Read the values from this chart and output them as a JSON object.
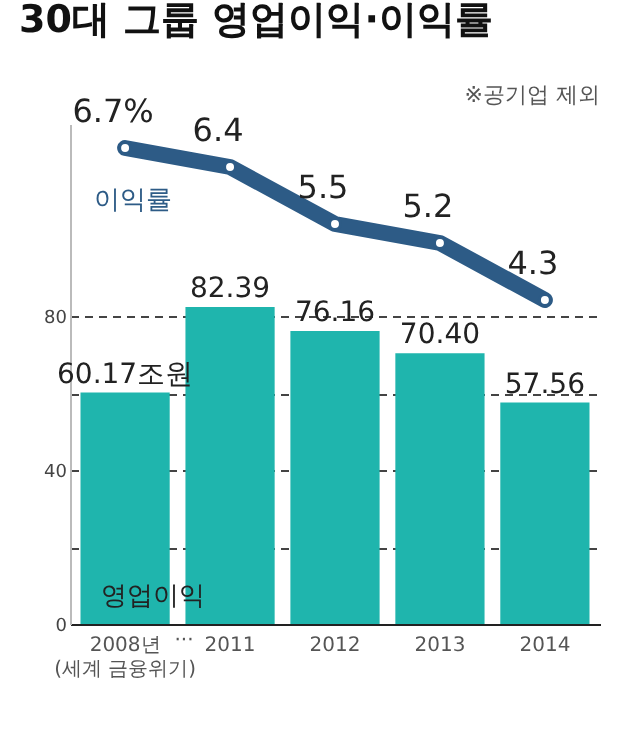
{
  "chart_data": {
    "type": "bar",
    "title": "30대 그룹 영업이익·이익률",
    "annotations": [
      "※공기업 제외",
      "···"
    ],
    "categories": [
      "2008년\n(세계 금융위기)",
      "2011",
      "2012",
      "2013",
      "2014"
    ],
    "series": [
      {
        "name": "영업이익",
        "color": "#1fb5ad",
        "values": [
          60.17,
          82.39,
          76.16,
          70.4,
          57.56
        ],
        "value_labels": [
          "60.17조원",
          "82.39",
          "76.16",
          "70.40",
          "57.56"
        ]
      },
      {
        "name": "이익률",
        "type": "line",
        "axis": "y2",
        "color": "#2d5b86",
        "values": [
          6.7,
          6.4,
          5.5,
          5.2,
          4.3
        ],
        "value_labels": [
          "6.7%",
          "6.4",
          "5.5",
          "5.2",
          "4.3"
        ]
      }
    ],
    "ylim": [
      0,
      130
    ],
    "yticks": [
      0,
      {
        "value": 20,
        "label": null
      },
      40,
      {
        "value": 60,
        "label": null
      },
      80
    ],
    "grid": true,
    "marker": "circle"
  }
}
